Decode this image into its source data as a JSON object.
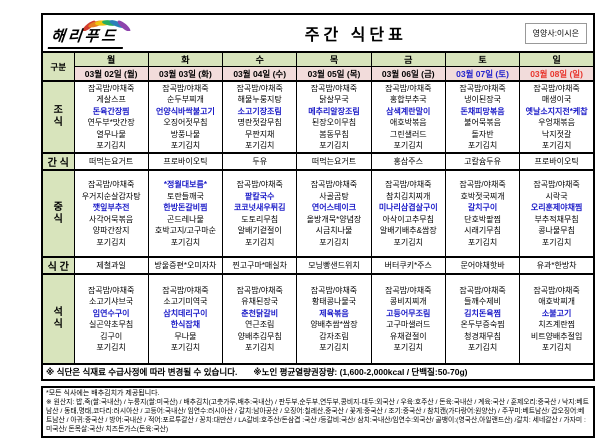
{
  "colors": {
    "accent_blue": "#1b1bc8",
    "saturday_blue": "#2323cc",
    "sunday_red": "#e8342c",
    "header_green": "#d8e4bc",
    "date_pink": "#f2dcdb"
  },
  "header": {
    "logo_text": "해리푸드",
    "title": "주간 식단표",
    "nutritionist": "영양사:이시은"
  },
  "table": {
    "corner_label": "구분",
    "days": [
      {
        "label": "월",
        "date": "03월 02일 (월)",
        "color": "black"
      },
      {
        "label": "화",
        "date": "03월 03일 (화)",
        "color": "black"
      },
      {
        "label": "수",
        "date": "03월 04일 (수)",
        "color": "black"
      },
      {
        "label": "목",
        "date": "03월 05일 (목)",
        "color": "black"
      },
      {
        "label": "금",
        "date": "03월 06일 (금)",
        "color": "black"
      },
      {
        "label": "토",
        "date": "03월 07일 (토)",
        "color": "blue"
      },
      {
        "label": "일",
        "date": "03월 08일 (일)",
        "color": "red"
      }
    ],
    "meals": [
      {
        "label": "조식",
        "stack": true,
        "columns": [
          [
            {
              "t": "잡곡밥/야채죽"
            },
            {
              "t": "게살스프"
            },
            {
              "t": "돈육간장찜",
              "em": true
            },
            {
              "t": "연두부*맛간장"
            },
            {
              "t": "열무나물"
            },
            {
              "t": "포기김치"
            }
          ],
          [
            {
              "t": "잡곡밥/야채죽"
            },
            {
              "t": "순두부찌개"
            },
            {
              "t": "언양식바싹불고기",
              "em": true
            },
            {
              "t": "오징어젓무침"
            },
            {
              "t": "방풍나물"
            },
            {
              "t": "포기김치"
            }
          ],
          [
            {
              "t": "잡곡밥/야채죽"
            },
            {
              "t": "해물누룽지탕"
            },
            {
              "t": "소고기장조림",
              "em": true
            },
            {
              "t": "명란젓갈무침"
            },
            {
              "t": "무짠지채"
            },
            {
              "t": "포기김치"
            }
          ],
          [
            {
              "t": "잡곡밥/야채죽"
            },
            {
              "t": "닭살무국"
            },
            {
              "t": "메추리알장조림",
              "em": true
            },
            {
              "t": "된장오이무침"
            },
            {
              "t": "봄동무침"
            },
            {
              "t": "포기김치"
            }
          ],
          [
            {
              "t": "잡곡밥/야채죽"
            },
            {
              "t": "홍합부추국"
            },
            {
              "t": "삼색계란말이",
              "em": true
            },
            {
              "t": "애호박볶음"
            },
            {
              "t": "그린샐러드"
            },
            {
              "t": "포기김치"
            }
          ],
          [
            {
              "t": "잡곡밥/야채죽"
            },
            {
              "t": "냉이된장국"
            },
            {
              "t": "돈채피망볶음",
              "em": true
            },
            {
              "t": "불어묵볶음"
            },
            {
              "t": "돌자반"
            },
            {
              "t": "포기김치"
            }
          ],
          [
            {
              "t": "잡곡밥/야채죽"
            },
            {
              "t": "매생이국"
            },
            {
              "t": "옛날소지지전*케찹",
              "em": true
            },
            {
              "t": "우엉채볶음"
            },
            {
              "t": "낙지젓갈"
            },
            {
              "t": "포기김치"
            }
          ]
        ]
      },
      {
        "label": "간식",
        "stack": false,
        "columns": [
          [
            {
              "t": "떠먹는요거트"
            }
          ],
          [
            {
              "t": "프로바이오틱"
            }
          ],
          [
            {
              "t": "두유"
            }
          ],
          [
            {
              "t": "떠먹는요거트"
            }
          ],
          [
            {
              "t": "홍삼주스"
            }
          ],
          [
            {
              "t": "고칼슘두유"
            }
          ],
          [
            {
              "t": "프로바이오틱"
            }
          ]
        ]
      },
      {
        "label": "중식",
        "stack": true,
        "columns": [
          [
            {
              "t": "잡곡밥/야채죽"
            },
            {
              "t": "우거지순살감자탕"
            },
            {
              "t": "깻잎부추전",
              "em": true
            },
            {
              "t": "사각어묵볶음"
            },
            {
              "t": "양파간장지"
            },
            {
              "t": "포기김치"
            }
          ],
          [
            {
              "t": "*정월대보름*",
              "em": true
            },
            {
              "t": "토란들깨국"
            },
            {
              "t": "한방돈갈비찜",
              "em": true
            },
            {
              "t": "곤드레나물"
            },
            {
              "t": "호박고지/고구마순"
            },
            {
              "t": "포기김치"
            }
          ],
          [
            {
              "t": "잡곡밥/야채죽"
            },
            {
              "t": "팥칼국수",
              "em": true
            },
            {
              "t": "코코넛새우튀김",
              "em": true
            },
            {
              "t": "도토리무침"
            },
            {
              "t": "알배기겉절이"
            },
            {
              "t": "포기김치"
            }
          ],
          [
            {
              "t": "잡곡밥/야채죽"
            },
            {
              "t": "사골곰탕"
            },
            {
              "t": "연어스테이크",
              "em": true
            },
            {
              "t": "올방개묵*양념장"
            },
            {
              "t": "시금치나물"
            },
            {
              "t": "포기김치"
            }
          ],
          [
            {
              "t": "잡곡밥/야채죽"
            },
            {
              "t": "참치김치찌개"
            },
            {
              "t": "미나리삼겹살구이",
              "em": true
            },
            {
              "t": "아삭이고추무침"
            },
            {
              "t": "알배기배추&쌈장"
            },
            {
              "t": "포기김치"
            }
          ],
          [
            {
              "t": "잡곡밥/야채죽"
            },
            {
              "t": "호박젓국찌개"
            },
            {
              "t": "갈치구이",
              "em": true
            },
            {
              "t": "단호박팥찜"
            },
            {
              "t": "시래기무침"
            },
            {
              "t": "포기김치"
            }
          ],
          [
            {
              "t": "잡곡밥/야채죽"
            },
            {
              "t": "시락국"
            },
            {
              "t": "오리훈제야채찜",
              "em": true
            },
            {
              "t": "부추적채무침"
            },
            {
              "t": "콩나물무침"
            },
            {
              "t": "포기김치"
            }
          ]
        ]
      },
      {
        "label": "식간",
        "stack": false,
        "columns": [
          [
            {
              "t": "제철과일"
            }
          ],
          [
            {
              "t": "방울증편*오미자차"
            }
          ],
          [
            {
              "t": "찐고구마*매실차"
            }
          ],
          [
            {
              "t": "모닝빵샌드위치"
            }
          ],
          [
            {
              "t": "버터쿠키*주스"
            }
          ],
          [
            {
              "t": "문어야채핫바"
            }
          ],
          [
            {
              "t": "유과*한방차"
            }
          ]
        ]
      },
      {
        "label": "석식",
        "stack": true,
        "columns": [
          [
            {
              "t": "잡곡밥/야채죽"
            },
            {
              "t": "소고기샤브국"
            },
            {
              "t": "임연수구이",
              "em": true
            },
            {
              "t": "실곤약초무침"
            },
            {
              "t": "김구이"
            },
            {
              "t": "포기김치"
            }
          ],
          [
            {
              "t": "잡곡밥/야채죽"
            },
            {
              "t": "소고기미역국"
            },
            {
              "t": "삼치데리구이",
              "em": true
            },
            {
              "t": "한식잡채",
              "em": true
            },
            {
              "t": "무나물"
            },
            {
              "t": "포기김치"
            }
          ],
          [
            {
              "t": "잡곡밥/야채죽"
            },
            {
              "t": "유채된장국"
            },
            {
              "t": "춘천닭갈비",
              "em": true
            },
            {
              "t": "연근조림"
            },
            {
              "t": "양배추김무침"
            },
            {
              "t": "포기김치"
            }
          ],
          [
            {
              "t": "잡곡밥/야채죽"
            },
            {
              "t": "황태콩나물국"
            },
            {
              "t": "제육볶음",
              "em": true
            },
            {
              "t": "양배추쌈*쌈장"
            },
            {
              "t": "감자조림"
            },
            {
              "t": "포기김치"
            }
          ],
          [
            {
              "t": "잡곡밥/야채죽"
            },
            {
              "t": "콩비지찌개"
            },
            {
              "t": "고등어무조림",
              "em": true
            },
            {
              "t": "고구마샐러드"
            },
            {
              "t": "유채겉절이"
            },
            {
              "t": "포기김치"
            }
          ],
          [
            {
              "t": "잡곡밥/야채죽"
            },
            {
              "t": "들깨수제비"
            },
            {
              "t": "김치돈육찜",
              "em": true
            },
            {
              "t": "온두부증숙찜"
            },
            {
              "t": "청경채무침"
            },
            {
              "t": "포기김치"
            }
          ],
          [
            {
              "t": "잡곡밥/야채죽"
            },
            {
              "t": "애호박찌개"
            },
            {
              "t": "소불고기",
              "em": true
            },
            {
              "t": "치즈계란찜"
            },
            {
              "t": "비트양배추절임"
            },
            {
              "t": "포기김치"
            }
          ]
        ]
      }
    ],
    "note_left": "※ 식단은 식재료 수급사정에 따라 변경될 수 있습니다.",
    "note_right": "※노인 평균열량권장량: (1,600-2,000kcal / 단백질:50-70g)"
  },
  "footer": {
    "line1": "*모든 식사에는 배추김치가 제공됩니다.",
    "line2": "※ 원산지: 밥,죽(쌀:국내산) / 누룽지(쌀:미국산) / 배추김치(고춧가루,배추:국내산) / 판두부,순두부,연두부,콩비지-대두:외국산 / 우육:호주산 / 돈육:국내산 / 계육:국산 / 훈제오리:중국산 / 낙지:베트남산 / 동태,명태,코다리:러시아산 / 고등어:국내산/ 임연수:러시아산 / 갈치:남아공산 / 오징어:칠레산,중국산 / 꽃게:중국산 / 조기:중국산 / 참치캔(가다랑어:원양산) / 주꾸미:베트남산/ 갑오징어:베트남산 / 아귀:중국산 / 방어:국내산 / 적어:포르투갈산 / 꽁치:대만산 / LA갈비:호주산/돈삼겹 :국산 /등갈비:국산/ 삼치:국내산/임연수:외국산/ 골뱅이:(영국산,아일랜드산) /갈치: 세네갈산 / 가자미 : 미국산/ 돈목살:국산/ 치즈돈가스(돈육:국산)"
  }
}
